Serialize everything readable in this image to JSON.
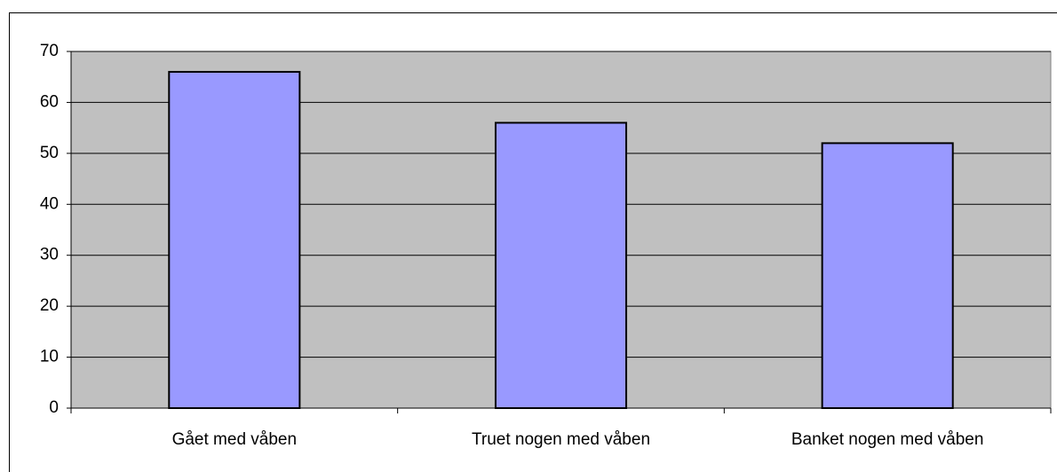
{
  "chart_data": {
    "type": "bar",
    "categories": [
      "Gået med våben",
      "Truet nogen med våben",
      "Banket nogen med våben"
    ],
    "values": [
      66,
      56,
      52
    ],
    "color": "#9999ff",
    "plot_background": "#c0c0c0",
    "ylim": [
      0,
      70
    ],
    "yticks": [
      0,
      10,
      20,
      30,
      40,
      50,
      60,
      70
    ],
    "grid": true
  }
}
